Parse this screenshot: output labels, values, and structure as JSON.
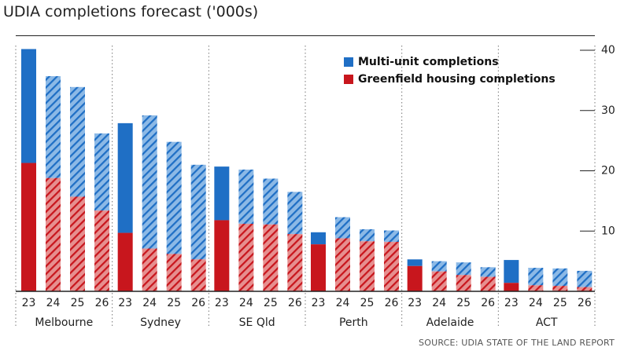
{
  "chart_data": {
    "type": "bar",
    "stacked": true,
    "title": "UDIA completions forecast ('000s)",
    "source": "SOURCE: UDIA STATE OF THE LAND REPORT",
    "ylim": [
      0,
      40
    ],
    "yticks": [
      10,
      20,
      30,
      40
    ],
    "regions": [
      {
        "name": "Melbourne",
        "years": [
          "23",
          "24",
          "25",
          "26"
        ],
        "greenfield": [
          21.3,
          18.8,
          15.7,
          13.4
        ],
        "multi_unit": [
          18.9,
          16.9,
          18.2,
          12.8
        ]
      },
      {
        "name": "Sydney",
        "years": [
          "23",
          "24",
          "25",
          "26"
        ],
        "greenfield": [
          9.7,
          7.1,
          6.2,
          5.3
        ],
        "multi_unit": [
          18.2,
          22.1,
          18.6,
          15.7
        ]
      },
      {
        "name": "SE Qld",
        "years": [
          "23",
          "24",
          "25",
          "26"
        ],
        "greenfield": [
          11.8,
          11.2,
          11.1,
          9.5
        ],
        "multi_unit": [
          8.9,
          9.0,
          7.6,
          7.0
        ]
      },
      {
        "name": "Perth",
        "years": [
          "23",
          "24",
          "25",
          "26"
        ],
        "greenfield": [
          7.8,
          8.8,
          8.3,
          8.2
        ],
        "multi_unit": [
          2.0,
          3.5,
          2.0,
          1.9
        ]
      },
      {
        "name": "Adelaide",
        "years": [
          "23",
          "24",
          "25",
          "26"
        ],
        "greenfield": [
          4.2,
          3.3,
          2.7,
          2.4
        ],
        "multi_unit": [
          1.1,
          1.7,
          2.1,
          1.6
        ]
      },
      {
        "name": "ACT",
        "years": [
          "23",
          "24",
          "25",
          "26"
        ],
        "greenfield": [
          1.4,
          1.0,
          0.9,
          0.7
        ],
        "multi_unit": [
          3.8,
          2.9,
          2.9,
          2.7
        ]
      }
    ],
    "legend": [
      {
        "key": "multi_unit",
        "label": "Multi-unit completions",
        "color": "#1f6fc5"
      },
      {
        "key": "greenfield",
        "label": "Greenfield housing completions",
        "color": "#c8161d"
      }
    ],
    "note": "First year (23) bars are solid; later forecast years are hatched."
  }
}
